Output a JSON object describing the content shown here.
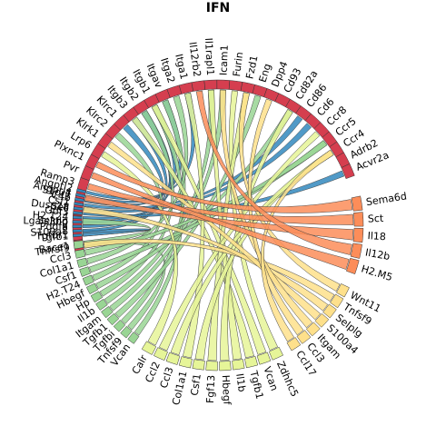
{
  "chart_data": {
    "type": "chord",
    "title": "IFN",
    "sectors": [
      {
        "name": "Tnfrsf9",
        "group": "receptor",
        "color": "#D53E4F"
      },
      {
        "name": "Tgfbr1",
        "group": "receptor",
        "color": "#D53E4F"
      },
      {
        "name": "Selplg",
        "group": "receptor",
        "color": "#D53E4F"
      },
      {
        "name": "Sell",
        "group": "receptor",
        "color": "#D53E4F"
      },
      {
        "name": "S1pr1",
        "group": "receptor",
        "color": "#D53E4F"
      },
      {
        "name": "Ramp3",
        "group": "receptor",
        "color": "#D53E4F"
      },
      {
        "name": "Pvr",
        "group": "receptor",
        "color": "#D53E4F"
      },
      {
        "name": "Plxnc1",
        "group": "receptor",
        "color": "#D53E4F"
      },
      {
        "name": "Lrp6",
        "group": "receptor",
        "color": "#D53E4F"
      },
      {
        "name": "Klrk1",
        "group": "receptor",
        "color": "#D53E4F"
      },
      {
        "name": "Klrc2",
        "group": "receptor",
        "color": "#D53E4F"
      },
      {
        "name": "Klrc1",
        "group": "receptor",
        "color": "#D53E4F"
      },
      {
        "name": "Itgb3",
        "group": "receptor",
        "color": "#D53E4F"
      },
      {
        "name": "Itgb2",
        "group": "receptor",
        "color": "#D53E4F"
      },
      {
        "name": "Itgb1",
        "group": "receptor",
        "color": "#D53E4F"
      },
      {
        "name": "Itgav",
        "group": "receptor",
        "color": "#D53E4F"
      },
      {
        "name": "Itga2",
        "group": "receptor",
        "color": "#D53E4F"
      },
      {
        "name": "Itga1",
        "group": "receptor",
        "color": "#D53E4F"
      },
      {
        "name": "Il12rb2",
        "group": "receptor",
        "color": "#D53E4F"
      },
      {
        "name": "Il1rapl1",
        "group": "receptor",
        "color": "#D53E4F"
      },
      {
        "name": "Icam1",
        "group": "receptor",
        "color": "#D53E4F"
      },
      {
        "name": "Furin",
        "group": "receptor",
        "color": "#D53E4F"
      },
      {
        "name": "Fzd1",
        "group": "receptor",
        "color": "#D53E4F"
      },
      {
        "name": "Eng",
        "group": "receptor",
        "color": "#D53E4F"
      },
      {
        "name": "Dpp4",
        "group": "receptor",
        "color": "#D53E4F"
      },
      {
        "name": "Cd93",
        "group": "receptor",
        "color": "#D53E4F"
      },
      {
        "name": "Cd82a",
        "group": "receptor",
        "color": "#D53E4F"
      },
      {
        "name": "Cd86",
        "group": "receptor",
        "color": "#D53E4F"
      },
      {
        "name": "Cd6",
        "group": "receptor",
        "color": "#D53E4F"
      },
      {
        "name": "Ccr8",
        "group": "receptor",
        "color": "#D53E4F"
      },
      {
        "name": "Ccr5",
        "group": "receptor",
        "color": "#D53E4F"
      },
      {
        "name": "Ccr4",
        "group": "receptor",
        "color": "#D53E4F"
      },
      {
        "name": "Adrb2",
        "group": "receptor",
        "color": "#D53E4F"
      },
      {
        "name": "Acvr2a",
        "group": "receptor",
        "color": "#D53E4F"
      },
      {
        "name": "Tgfb1",
        "group": "source-1",
        "color": "#3288BD"
      },
      {
        "name": "S100a8",
        "group": "source-1",
        "color": "#3288BD"
      },
      {
        "name": "Pdgfa",
        "group": "source-1",
        "color": "#3288BD"
      },
      {
        "name": "Lgals3bp",
        "group": "source-1",
        "color": "#3288BD"
      },
      {
        "name": "H2.T24",
        "group": "source-1",
        "color": "#3288BD"
      },
      {
        "name": "Gdf3",
        "group": "source-1",
        "color": "#3288BD"
      },
      {
        "name": "Dusp18",
        "group": "source-1",
        "color": "#3288BD"
      },
      {
        "name": "Csf1",
        "group": "source-1",
        "color": "#3288BD"
      },
      {
        "name": "C4b",
        "group": "source-1",
        "color": "#3288BD"
      },
      {
        "name": "Angptl4",
        "group": "source-1",
        "color": "#3288BD"
      },
      {
        "name": "Angptl2",
        "group": "source-1",
        "color": "#3288BD"
      },
      {
        "name": "Vcan",
        "group": "source-2",
        "color": "#99D594"
      },
      {
        "name": "Tnfsf9",
        "group": "source-2",
        "color": "#99D594"
      },
      {
        "name": "Tgfbi",
        "group": "source-2",
        "color": "#99D594"
      },
      {
        "name": "Tgfb1",
        "group": "source-2",
        "color": "#99D594"
      },
      {
        "name": "Itgam",
        "group": "source-2",
        "color": "#99D594"
      },
      {
        "name": "Il1b",
        "group": "source-2",
        "color": "#99D594"
      },
      {
        "name": "Hp",
        "group": "source-2",
        "color": "#99D594"
      },
      {
        "name": "Hbegf",
        "group": "source-2",
        "color": "#99D594"
      },
      {
        "name": "H2.T24",
        "group": "source-2",
        "color": "#99D594"
      },
      {
        "name": "Csf1",
        "group": "source-2",
        "color": "#99D594"
      },
      {
        "name": "Col1a1",
        "group": "source-2",
        "color": "#99D594"
      },
      {
        "name": "Ccl3",
        "group": "source-2",
        "color": "#99D594"
      },
      {
        "name": "Bace1",
        "group": "source-2",
        "color": "#99D594"
      },
      {
        "name": "Zdhhc5",
        "group": "source-3",
        "color": "#E6F598"
      },
      {
        "name": "Vcan",
        "group": "source-3",
        "color": "#E6F598"
      },
      {
        "name": "Tgfb1",
        "group": "source-3",
        "color": "#E6F598"
      },
      {
        "name": "Il1b",
        "group": "source-3",
        "color": "#E6F598"
      },
      {
        "name": "Hbegf",
        "group": "source-3",
        "color": "#E6F598"
      },
      {
        "name": "Fgf13",
        "group": "source-3",
        "color": "#E6F598"
      },
      {
        "name": "Csf1",
        "group": "source-3",
        "color": "#E6F598"
      },
      {
        "name": "Col1a1",
        "group": "source-3",
        "color": "#E6F598"
      },
      {
        "name": "Ccl3",
        "group": "source-3",
        "color": "#E6F598"
      },
      {
        "name": "Ccl2",
        "group": "source-3",
        "color": "#E6F598"
      },
      {
        "name": "Calr",
        "group": "source-3",
        "color": "#E6F598"
      },
      {
        "name": "Wnt11",
        "group": "source-4",
        "color": "#FEE08B"
      },
      {
        "name": "Tnfsf9",
        "group": "source-4",
        "color": "#FEE08B"
      },
      {
        "name": "Selplg",
        "group": "source-4",
        "color": "#FEE08B"
      },
      {
        "name": "S100a4",
        "group": "source-4",
        "color": "#FEE08B"
      },
      {
        "name": "Itgam",
        "group": "source-4",
        "color": "#FEE08B"
      },
      {
        "name": "Ccl3",
        "group": "source-4",
        "color": "#FEE08B"
      },
      {
        "name": "Ccl17",
        "group": "source-4",
        "color": "#FEE08B"
      },
      {
        "name": "Sema6d",
        "group": "source-5",
        "color": "#FC8D59"
      },
      {
        "name": "Sct",
        "group": "source-5",
        "color": "#FC8D59"
      },
      {
        "name": "Il18",
        "group": "source-5",
        "color": "#FC8D59"
      },
      {
        "name": "Il12b",
        "group": "source-5",
        "color": "#FC8D59"
      },
      {
        "name": "H2.M5",
        "group": "source-5",
        "color": "#FC8D59"
      }
    ],
    "links": [
      {
        "from": "Tgfb1",
        "to": "Tgfbr1",
        "group": "source-1"
      },
      {
        "from": "S100a8",
        "to": "Itgb2",
        "group": "source-1"
      },
      {
        "from": "Pdgfa",
        "to": "Itgb3",
        "group": "source-1"
      },
      {
        "from": "Lgals3bp",
        "to": "Itgb1",
        "group": "source-1"
      },
      {
        "from": "H2.T24",
        "to": "Klrc1",
        "group": "source-1"
      },
      {
        "from": "Gdf3",
        "to": "Acvr2a",
        "group": "source-1"
      },
      {
        "from": "Dusp18",
        "to": "Cd6",
        "group": "source-1"
      },
      {
        "from": "Csf1",
        "to": "Cd86",
        "group": "source-1"
      },
      {
        "from": "C4b",
        "to": "Itgb2",
        "group": "source-1"
      },
      {
        "from": "Angptl4",
        "to": "Itgav",
        "group": "source-1"
      },
      {
        "from": "Angptl2",
        "to": "Itga1",
        "group": "source-1"
      },
      {
        "from": "Vcan",
        "to": "Itgb1",
        "group": "source-2"
      },
      {
        "from": "Tnfsf9",
        "to": "Tnfrsf9",
        "group": "source-2"
      },
      {
        "from": "Tgfbi",
        "to": "Itgav",
        "group": "source-2"
      },
      {
        "from": "Tgfb1",
        "to": "Eng",
        "group": "source-2"
      },
      {
        "from": "Itgam",
        "to": "Icam1",
        "group": "source-2"
      },
      {
        "from": "Il1b",
        "to": "Il1rapl1",
        "group": "source-2"
      },
      {
        "from": "Hp",
        "to": "Itgb2",
        "group": "source-2"
      },
      {
        "from": "Hbegf",
        "to": "Cd82a",
        "group": "source-2"
      },
      {
        "from": "H2.T24",
        "to": "Klrc2",
        "group": "source-2"
      },
      {
        "from": "Csf1",
        "to": "Ccr5",
        "group": "source-2"
      },
      {
        "from": "Col1a1",
        "to": "Itga2",
        "group": "source-2"
      },
      {
        "from": "Ccl3",
        "to": "Ccr5",
        "group": "source-2"
      },
      {
        "from": "Bace1",
        "to": "Selplg",
        "group": "source-2"
      },
      {
        "from": "Zdhhc5",
        "to": "Furin",
        "group": "source-3"
      },
      {
        "from": "Vcan",
        "to": "Itgb1",
        "group": "source-3"
      },
      {
        "from": "Tgfb1",
        "to": "Itgb3",
        "group": "source-3"
      },
      {
        "from": "Il1b",
        "to": "Il1rapl1",
        "group": "source-3"
      },
      {
        "from": "Hbegf",
        "to": "Cd82a",
        "group": "source-3"
      },
      {
        "from": "Fgf13",
        "to": "Fzd1",
        "group": "source-3"
      },
      {
        "from": "Csf1",
        "to": "Ccr4",
        "group": "source-3"
      },
      {
        "from": "Col1a1",
        "to": "Itga1",
        "group": "source-3"
      },
      {
        "from": "Ccl3",
        "to": "Ccr4",
        "group": "source-3"
      },
      {
        "from": "Ccl2",
        "to": "Ccr8",
        "group": "source-3"
      },
      {
        "from": "Calr",
        "to": "Lrp6",
        "group": "source-3"
      },
      {
        "from": "Wnt11",
        "to": "Fzd1",
        "group": "source-4"
      },
      {
        "from": "Tnfsf9",
        "to": "Tnfrsf9",
        "group": "source-4"
      },
      {
        "from": "Selplg",
        "to": "Sell",
        "group": "source-4"
      },
      {
        "from": "S100a4",
        "to": "Klrk1",
        "group": "source-4"
      },
      {
        "from": "Itgam",
        "to": "Icam1",
        "group": "source-4"
      },
      {
        "from": "Ccl3",
        "to": "Dpp4",
        "group": "source-4"
      },
      {
        "from": "Ccl17",
        "to": "Ccr4",
        "group": "source-4"
      },
      {
        "from": "Sema6d",
        "to": "Plxnc1",
        "group": "source-5"
      },
      {
        "from": "Sct",
        "to": "Ramp3",
        "group": "source-5"
      },
      {
        "from": "Il18",
        "to": "S1pr1",
        "group": "source-5"
      },
      {
        "from": "Il12b",
        "to": "Il12rb2",
        "group": "source-5"
      },
      {
        "from": "H2.M5",
        "to": "Pvr",
        "group": "source-5"
      }
    ]
  }
}
